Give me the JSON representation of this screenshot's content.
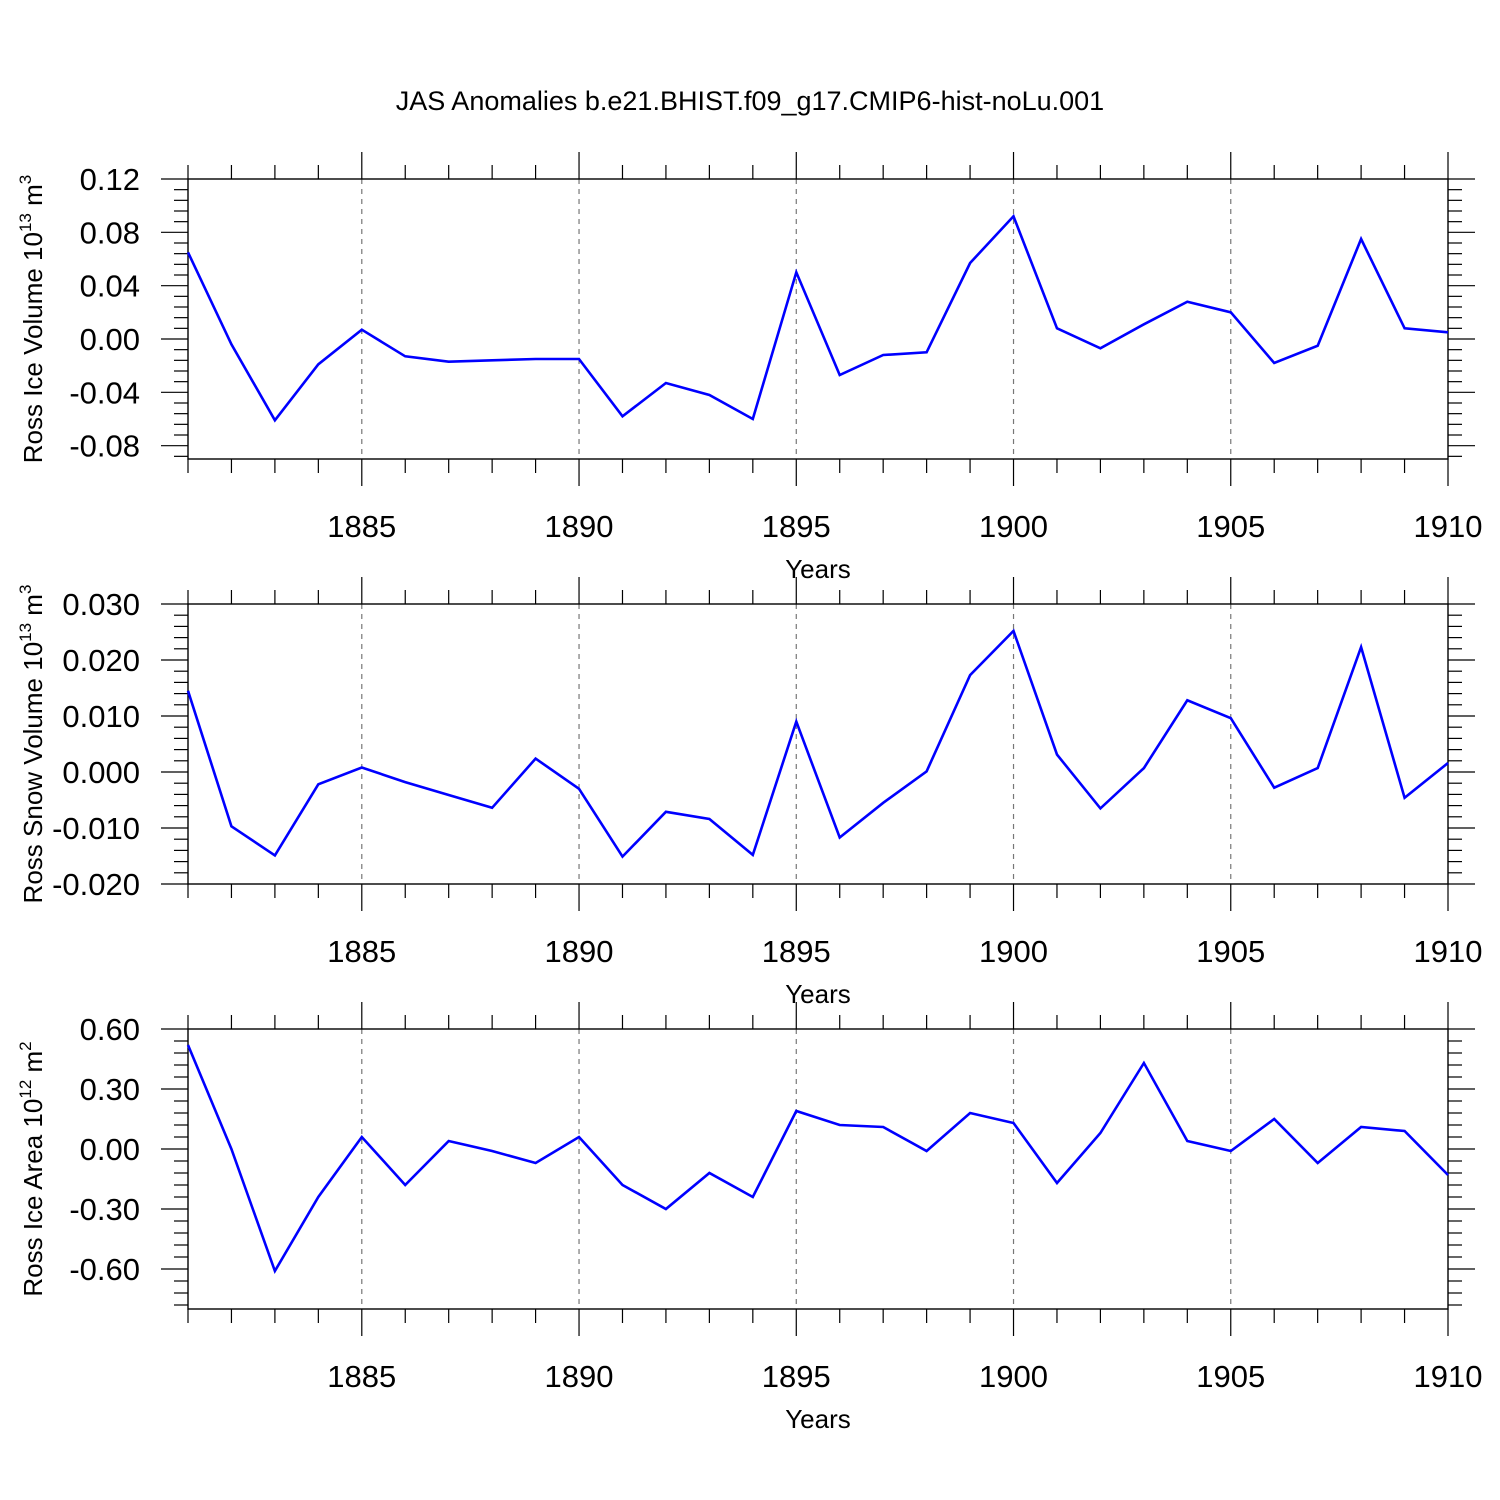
{
  "title": "JAS Anomalies b.e21.BHIST.f09_g17.CMIP6-hist-noLu.001",
  "colors": {
    "series": "#0000ff",
    "axis": "#000000",
    "grid": "#777777"
  },
  "chart_data": [
    {
      "type": "line",
      "ylabel": {
        "text": "Ross Ice Volume 10",
        "exp": "13",
        "unit": " m",
        "unit_exp": "3"
      },
      "xlabel": "Years",
      "xlim": [
        1881,
        1910
      ],
      "ylim": [
        -0.09,
        0.12
      ],
      "yticks": [
        0.12,
        0.08,
        0.04,
        0.0,
        -0.04,
        -0.08
      ],
      "ytick_labels": [
        "0.12",
        "0.08",
        "0.04",
        "0.00",
        "-0.04",
        "-0.08"
      ],
      "xticks": [
        1885,
        1890,
        1895,
        1900,
        1905,
        1910
      ],
      "xtick_labels": [
        "1885",
        "1890",
        "1895",
        "1900",
        "1905",
        "1910"
      ],
      "grid": "dashed vertical at major x ticks",
      "x": [
        1881,
        1882,
        1883,
        1884,
        1885,
        1886,
        1887,
        1888,
        1889,
        1890,
        1891,
        1892,
        1893,
        1894,
        1895,
        1896,
        1897,
        1898,
        1899,
        1900,
        1901,
        1902,
        1903,
        1904,
        1905,
        1906,
        1907,
        1908,
        1909,
        1910
      ],
      "series": [
        {
          "values": [
            0.065,
            -0.004,
            -0.061,
            -0.019,
            0.007,
            -0.013,
            -0.017,
            -0.016,
            -0.015,
            -0.015,
            -0.058,
            -0.033,
            -0.042,
            -0.06,
            0.05,
            -0.027,
            -0.012,
            -0.01,
            0.057,
            0.092,
            0.008,
            -0.007,
            0.011,
            0.028,
            0.02,
            -0.018,
            -0.005,
            0.075,
            0.008,
            0.005
          ]
        }
      ]
    },
    {
      "type": "line",
      "ylabel": {
        "text": "Ross Snow Volume 10",
        "exp": "13",
        "unit": " m",
        "unit_exp": "3"
      },
      "xlabel": "Years",
      "xlim": [
        1881,
        1910
      ],
      "ylim": [
        -0.02,
        0.03
      ],
      "yticks": [
        0.03,
        0.02,
        0.01,
        0.0,
        -0.01,
        -0.02
      ],
      "ytick_labels": [
        "0.030",
        "0.020",
        "0.010",
        "0.000",
        "-0.010",
        "-0.020"
      ],
      "xticks": [
        1885,
        1890,
        1895,
        1900,
        1905,
        1910
      ],
      "xtick_labels": [
        "1885",
        "1890",
        "1895",
        "1900",
        "1905",
        "1910"
      ],
      "grid": "dashed vertical at major x ticks",
      "x": [
        1881,
        1882,
        1883,
        1884,
        1885,
        1886,
        1887,
        1888,
        1889,
        1890,
        1891,
        1892,
        1893,
        1894,
        1895,
        1896,
        1897,
        1898,
        1899,
        1900,
        1901,
        1902,
        1903,
        1904,
        1905,
        1906,
        1907,
        1908,
        1909,
        1910
      ],
      "series": [
        {
          "values": [
            0.0145,
            -0.0097,
            -0.0149,
            -0.0022,
            0.0008,
            -0.0018,
            -0.0041,
            -0.0064,
            0.0024,
            -0.003,
            -0.0151,
            -0.0071,
            -0.0084,
            -0.0148,
            0.009,
            -0.0117,
            -0.0055,
            0.0001,
            0.0173,
            0.0252,
            0.0031,
            -0.0065,
            0.0007,
            0.0128,
            0.0096,
            -0.0028,
            0.0007,
            0.0223,
            -0.0046,
            0.0016
          ]
        }
      ]
    },
    {
      "type": "line",
      "ylabel": {
        "text": "Ross Ice Area 10",
        "exp": "12",
        "unit": " m",
        "unit_exp": "2"
      },
      "xlabel": "Years",
      "xlim": [
        1881,
        1910
      ],
      "ylim": [
        -0.8,
        0.6
      ],
      "yticks": [
        0.6,
        0.3,
        0.0,
        -0.3,
        -0.6
      ],
      "ytick_labels": [
        "0.60",
        "0.30",
        "0.00",
        "-0.30",
        "-0.60"
      ],
      "xticks": [
        1885,
        1890,
        1895,
        1900,
        1905,
        1910
      ],
      "xtick_labels": [
        "1885",
        "1890",
        "1895",
        "1900",
        "1905",
        "1910"
      ],
      "grid": "dashed vertical at major x ticks",
      "x": [
        1881,
        1882,
        1883,
        1884,
        1885,
        1886,
        1887,
        1888,
        1889,
        1890,
        1891,
        1892,
        1893,
        1894,
        1895,
        1896,
        1897,
        1898,
        1899,
        1900,
        1901,
        1902,
        1903,
        1904,
        1905,
        1906,
        1907,
        1908,
        1909,
        1910
      ],
      "series": [
        {
          "values": [
            0.52,
            0.0,
            -0.61,
            -0.24,
            0.06,
            -0.18,
            0.04,
            -0.01,
            -0.07,
            0.06,
            -0.18,
            -0.3,
            -0.12,
            -0.24,
            0.19,
            0.12,
            0.11,
            -0.01,
            0.18,
            0.13,
            -0.17,
            0.08,
            0.43,
            0.04,
            -0.01,
            0.15,
            -0.07,
            0.11,
            0.09,
            -0.13
          ]
        }
      ]
    }
  ]
}
